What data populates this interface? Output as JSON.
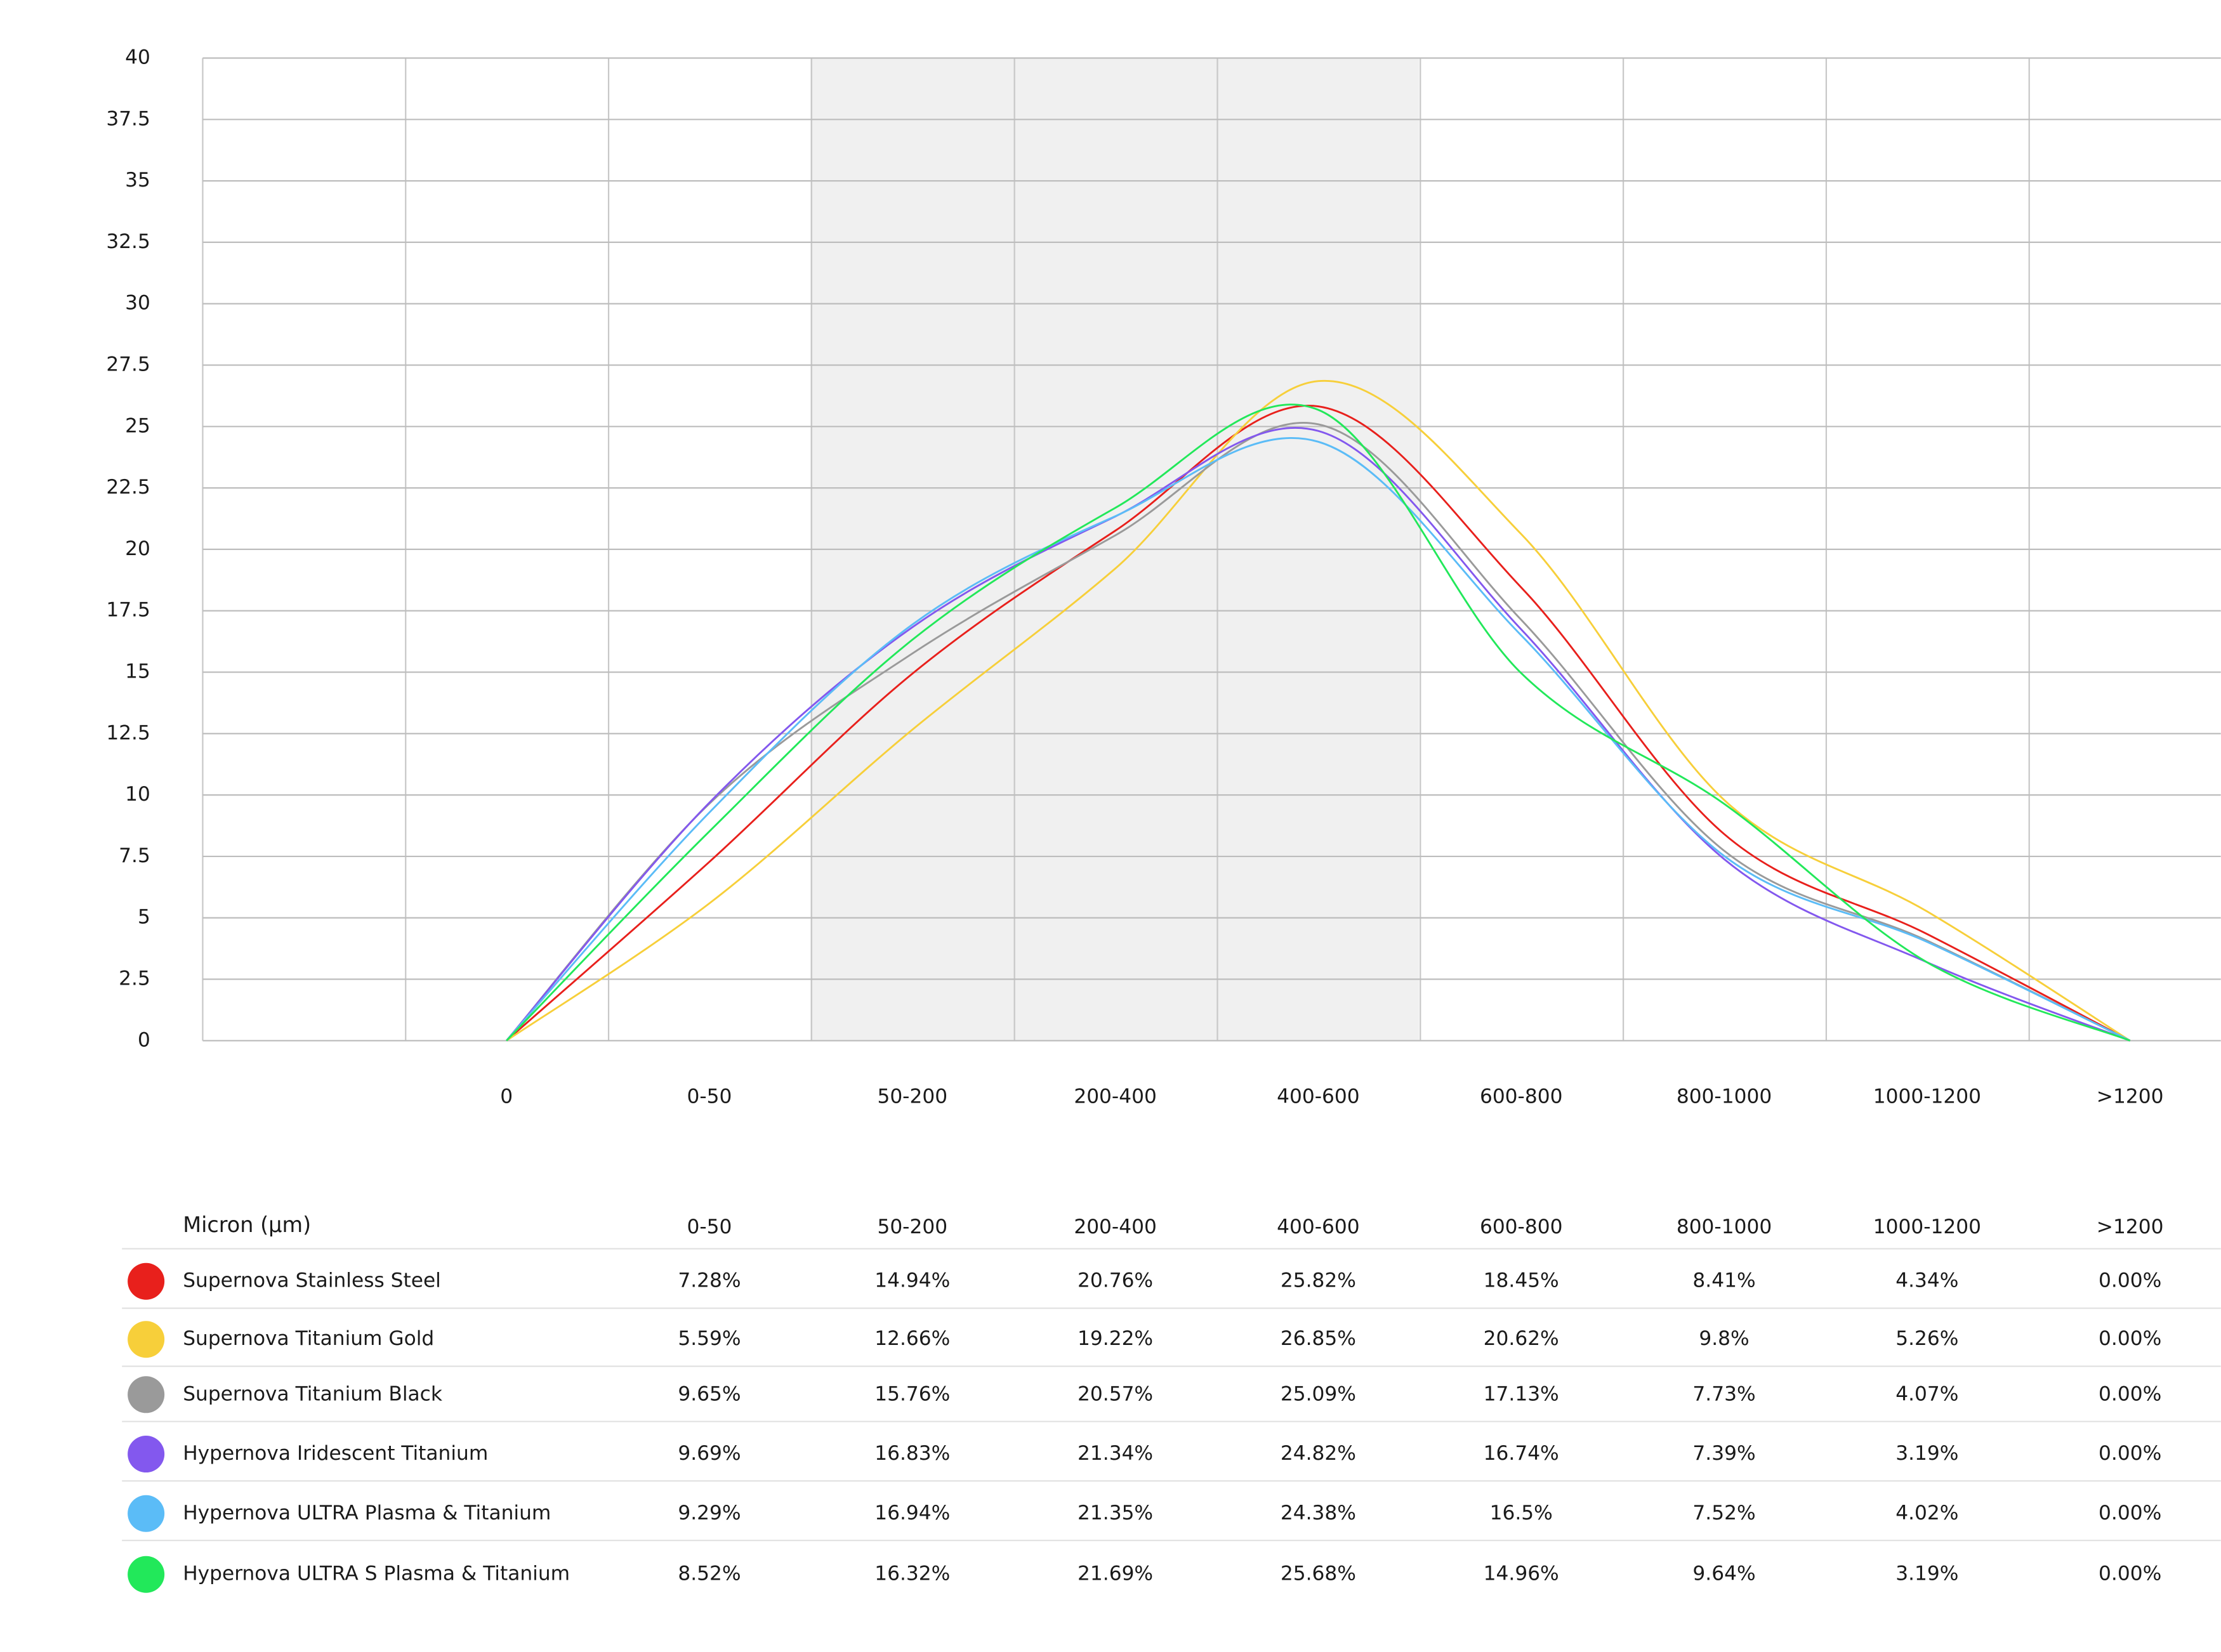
{
  "chart_data": {
    "type": "line",
    "categories": [
      "0",
      "0-50",
      "50-200",
      "200-400",
      "400-600",
      "600-800",
      "800-1000",
      "1000-1200",
      ">1200"
    ],
    "ylim": [
      0,
      40
    ],
    "yticks": [
      0,
      2.5,
      5,
      7.5,
      10,
      12.5,
      15,
      17.5,
      20,
      22.5,
      25,
      27.5,
      30,
      32.5,
      35,
      37.5,
      40
    ],
    "grid": true,
    "table_header": "Micron (μm)",
    "series": [
      {
        "name": "Supernova Stainless Steel",
        "color": "#e8201c",
        "values": [
          0,
          7.28,
          14.94,
          20.76,
          25.82,
          18.45,
          8.41,
          4.34,
          0
        ],
        "value_labels": [
          null,
          "7.28%",
          "14.94%",
          "20.76%",
          "25.82%",
          "18.45%",
          "8.41%",
          "4.34%",
          "0.00%"
        ]
      },
      {
        "name": "Supernova Titanium Gold",
        "color": "#f7cf3a",
        "values": [
          0,
          5.59,
          12.66,
          19.22,
          26.85,
          20.62,
          9.8,
          5.26,
          0
        ],
        "value_labels": [
          null,
          "5.59%",
          "12.66%",
          "19.22%",
          "26.85%",
          "20.62%",
          "9.8%",
          "5.26%",
          "0.00%"
        ]
      },
      {
        "name": "Supernova Titanium Black",
        "color": "#9a9a9a",
        "values": [
          0,
          9.65,
          15.76,
          20.57,
          25.09,
          17.13,
          7.73,
          4.07,
          0
        ],
        "value_labels": [
          null,
          "9.65%",
          "15.76%",
          "20.57%",
          "25.09%",
          "17.13%",
          "7.73%",
          "4.07%",
          "0.00%"
        ]
      },
      {
        "name": "Hypernova Iridescent Titanium",
        "color": "#8358ee",
        "values": [
          0,
          9.69,
          16.83,
          21.34,
          24.82,
          16.74,
          7.39,
          3.19,
          0
        ],
        "value_labels": [
          null,
          "9.69%",
          "16.83%",
          "21.34%",
          "24.82%",
          "16.74%",
          "7.39%",
          "3.19%",
          "0.00%"
        ]
      },
      {
        "name": "Hypernova ULTRA Plasma & Titanium",
        "color": "#5bbcf7",
        "values": [
          0,
          9.29,
          16.94,
          21.35,
          24.38,
          16.5,
          7.52,
          4.02,
          0
        ],
        "value_labels": [
          null,
          "9.29%",
          "16.94%",
          "21.35%",
          "24.38%",
          "16.5%",
          "7.52%",
          "4.02%",
          "0.00%"
        ]
      },
      {
        "name": "Hypernova ULTRA S Plasma & Titanium",
        "color": "#22e85a",
        "values": [
          0,
          8.52,
          16.32,
          21.69,
          25.68,
          14.96,
          9.64,
          3.19,
          0
        ],
        "value_labels": [
          null,
          "8.52%",
          "16.32%",
          "21.69%",
          "25.68%",
          "14.96%",
          "9.64%",
          "3.19%",
          "0.00%"
        ]
      }
    ]
  }
}
